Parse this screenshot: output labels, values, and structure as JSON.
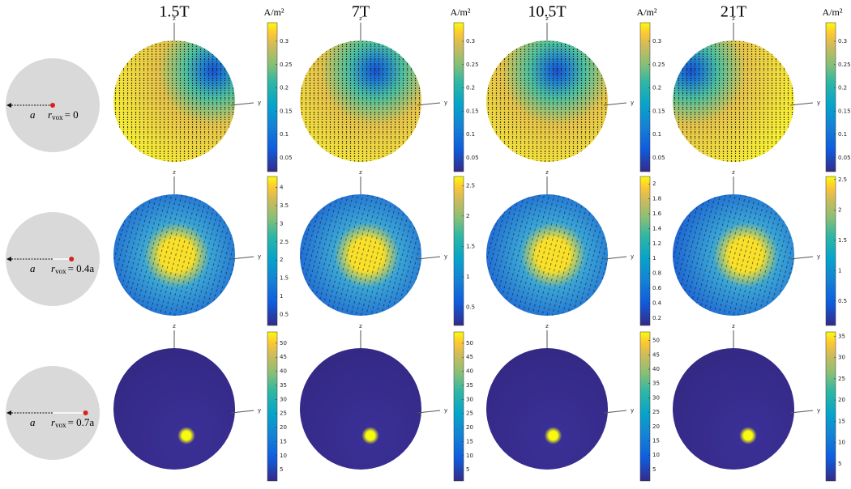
{
  "columns": [
    "1.5T",
    "7T",
    "10.5T",
    "21T"
  ],
  "unit": "A/m²",
  "axis_labels": {
    "z": "z",
    "y": "y"
  },
  "rows": [
    {
      "radius_symbol": "a",
      "r_symbol": "r",
      "r_subscript": "vox",
      "r_value": "= 0",
      "colorbars": [
        {
          "range": [
            0.02,
            0.34
          ],
          "ticks": [
            0.05,
            0.1,
            0.15,
            0.2,
            0.25,
            0.3
          ]
        },
        {
          "range": [
            0.02,
            0.34
          ],
          "ticks": [
            0.05,
            0.1,
            0.15,
            0.2,
            0.25,
            0.3
          ]
        },
        {
          "range": [
            0.02,
            0.34
          ],
          "ticks": [
            0.05,
            0.1,
            0.15,
            0.2,
            0.25,
            0.3
          ]
        },
        {
          "range": [
            0.02,
            0.34
          ],
          "ticks": [
            0.05,
            0.1,
            0.15,
            0.2,
            0.25,
            0.3
          ]
        }
      ]
    },
    {
      "radius_symbol": "a",
      "r_symbol": "r",
      "r_subscript": "vox",
      "r_value": "= 0.4a",
      "colorbars": [
        {
          "range": [
            0.2,
            4.3
          ],
          "ticks": [
            0.5,
            1,
            1.5,
            2,
            2.5,
            3,
            3.5,
            4
          ]
        },
        {
          "range": [
            0.2,
            2.65
          ],
          "ticks": [
            0.5,
            1,
            1.5,
            2,
            2.5
          ]
        },
        {
          "range": [
            0.1,
            2.1
          ],
          "ticks": [
            0.2,
            0.4,
            0.6,
            0.8,
            1,
            1.2,
            1.4,
            1.6,
            1.8,
            2
          ]
        },
        {
          "range": [
            0.1,
            2.55
          ],
          "ticks": [
            0.5,
            1,
            1.5,
            2,
            2.5
          ]
        }
      ]
    },
    {
      "radius_symbol": "a",
      "r_symbol": "r",
      "r_subscript": "vox",
      "r_value": "= 0.7a",
      "colorbars": [
        {
          "range": [
            1,
            54
          ],
          "ticks": [
            5,
            10,
            15,
            20,
            25,
            30,
            35,
            40,
            45,
            50
          ]
        },
        {
          "range": [
            1,
            54
          ],
          "ticks": [
            5,
            10,
            15,
            20,
            25,
            30,
            35,
            40,
            45,
            50
          ]
        },
        {
          "range": [
            1,
            53
          ],
          "ticks": [
            5,
            10,
            15,
            20,
            25,
            30,
            35,
            40,
            45,
            50
          ]
        },
        {
          "range": [
            1,
            36
          ],
          "ticks": [
            5,
            10,
            15,
            20,
            25,
            30,
            35
          ]
        }
      ]
    }
  ]
}
